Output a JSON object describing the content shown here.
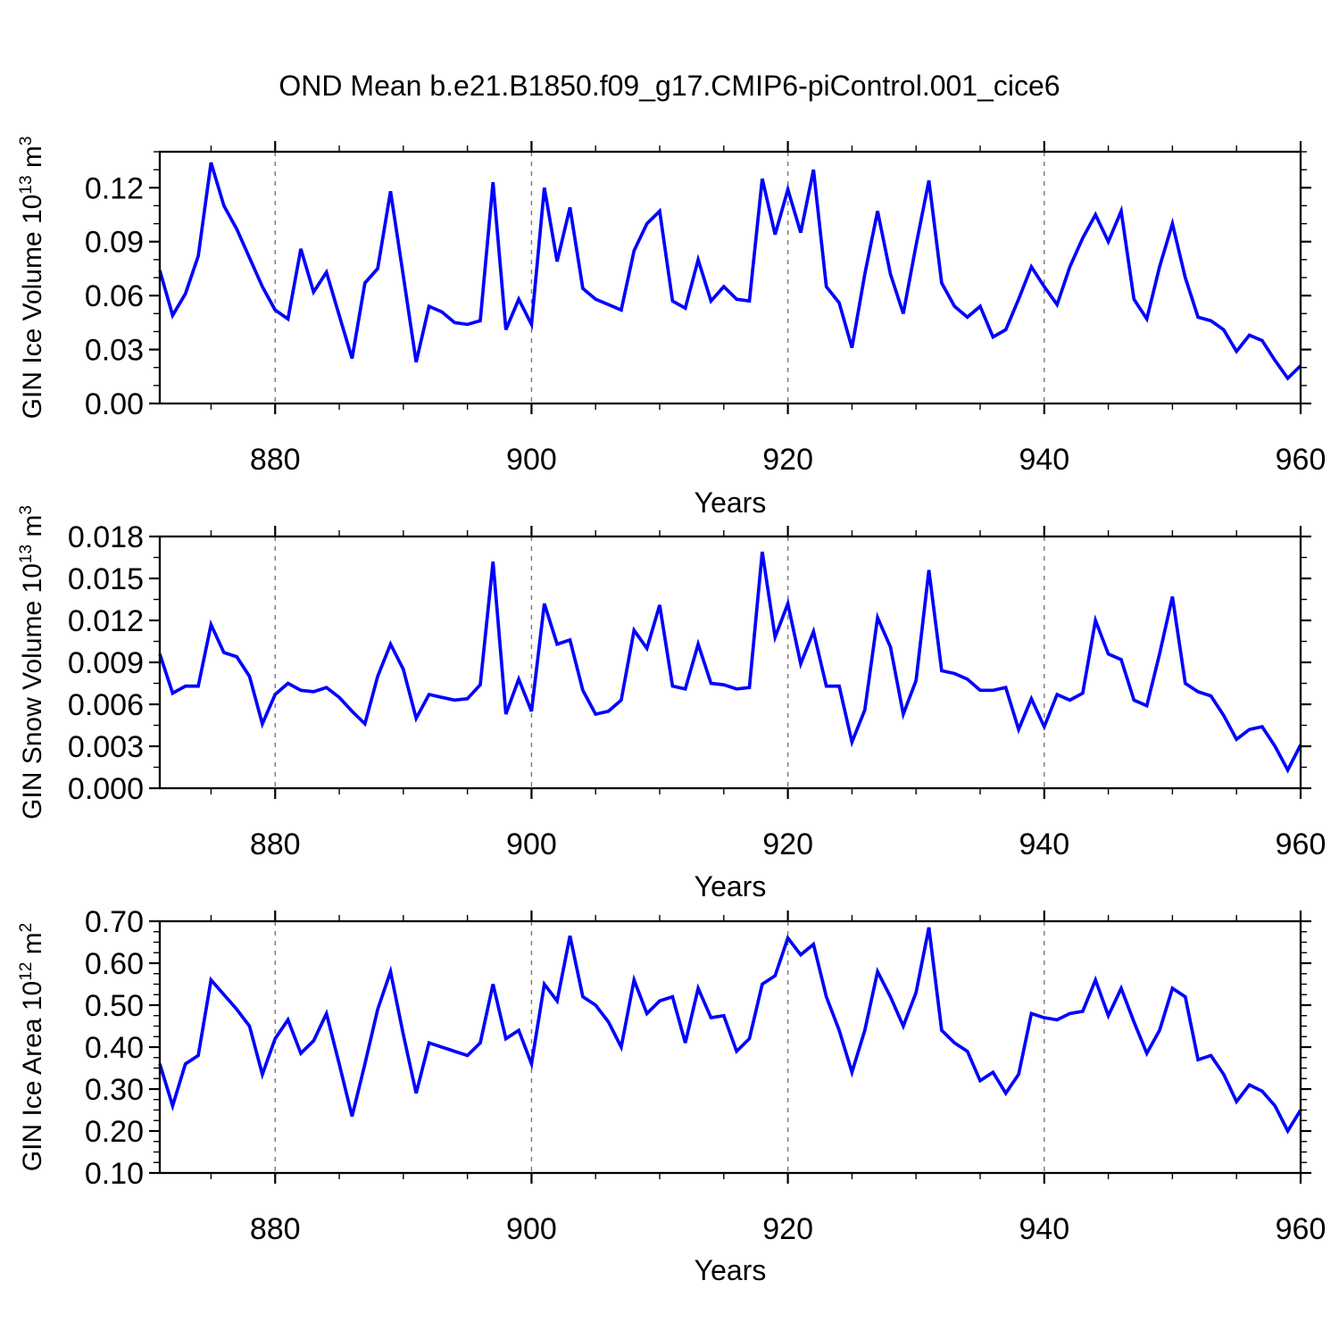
{
  "title": "OND Mean b.e21.B1850.f09_g17.CMIP6-piControl.001_cice6",
  "colors": {
    "line": "#0000ff",
    "axis": "#000000",
    "grid": "#777777",
    "background": "#ffffff"
  },
  "years": [
    871,
    872,
    873,
    874,
    875,
    876,
    877,
    878,
    879,
    880,
    881,
    882,
    883,
    884,
    885,
    886,
    887,
    888,
    889,
    890,
    891,
    892,
    893,
    894,
    895,
    896,
    897,
    898,
    899,
    900,
    901,
    902,
    903,
    904,
    905,
    906,
    907,
    908,
    909,
    910,
    911,
    912,
    913,
    914,
    915,
    916,
    917,
    918,
    919,
    920,
    921,
    922,
    923,
    924,
    925,
    926,
    927,
    928,
    929,
    930,
    931,
    932,
    933,
    934,
    935,
    936,
    937,
    938,
    939,
    940,
    941,
    942,
    943,
    944,
    945,
    946,
    947,
    948,
    949,
    950,
    951,
    952,
    953,
    954,
    955,
    956,
    957,
    958,
    959,
    960
  ],
  "chart_data": [
    {
      "type": "line",
      "name": "gin-ice-volume",
      "xlabel": "Years",
      "ylabel_parts": [
        {
          "t": "GIN Ice Volume 10"
        },
        {
          "t": "13"
        },
        {
          "t": " m"
        },
        {
          "t": "3"
        }
      ],
      "xlim": [
        871,
        960
      ],
      "ylim": [
        0,
        0.14
      ],
      "xticks": [
        880,
        900,
        920,
        940,
        960
      ],
      "xtick_labels": [
        "880",
        "900",
        "920",
        "940",
        "960"
      ],
      "xminor_step": 5,
      "yticks": [
        0,
        0.03,
        0.06,
        0.09,
        0.12
      ],
      "ytick_labels": [
        "0.00",
        "0.03",
        "0.06",
        "0.09",
        "0.12"
      ],
      "yminor_step": 0.01,
      "grid_x": [
        880,
        900,
        920,
        940
      ],
      "grid": true,
      "legend": "none",
      "values": [
        0.074,
        0.049,
        0.061,
        0.082,
        0.134,
        0.11,
        0.097,
        0.081,
        0.065,
        0.052,
        0.047,
        0.086,
        0.062,
        0.073,
        0.049,
        0.025,
        0.067,
        0.075,
        0.118,
        0.071,
        0.023,
        0.054,
        0.051,
        0.045,
        0.044,
        0.046,
        0.123,
        0.041,
        0.058,
        0.044,
        0.12,
        0.079,
        0.109,
        0.064,
        0.058,
        0.055,
        0.052,
        0.085,
        0.1,
        0.107,
        0.057,
        0.053,
        0.08,
        0.057,
        0.065,
        0.058,
        0.057,
        0.125,
        0.094,
        0.119,
        0.095,
        0.13,
        0.065,
        0.056,
        0.031,
        0.072,
        0.107,
        0.072,
        0.05,
        0.088,
        0.124,
        0.067,
        0.054,
        0.048,
        0.054,
        0.037,
        0.041,
        0.058,
        0.076,
        0.065,
        0.055,
        0.076,
        0.092,
        0.105,
        0.09,
        0.107,
        0.058,
        0.047,
        0.076,
        0.1,
        0.07,
        0.048,
        0.046,
        0.041,
        0.029,
        0.038,
        0.035,
        0.024,
        0.014,
        0.021
      ]
    },
    {
      "type": "line",
      "name": "gin-snow-volume",
      "xlabel": "Years",
      "ylabel_parts": [
        {
          "t": "GIN Snow Volume 10"
        },
        {
          "t": "13"
        },
        {
          "t": " m"
        },
        {
          "t": "3"
        }
      ],
      "xlim": [
        871,
        960
      ],
      "ylim": [
        0,
        0.018
      ],
      "xticks": [
        880,
        900,
        920,
        940,
        960
      ],
      "xtick_labels": [
        "880",
        "900",
        "920",
        "940",
        "960"
      ],
      "xminor_step": 5,
      "yticks": [
        0,
        0.003,
        0.006,
        0.009,
        0.012,
        0.015,
        0.018
      ],
      "ytick_labels": [
        "0.000",
        "0.003",
        "0.006",
        "0.009",
        "0.012",
        "0.015",
        "0.018"
      ],
      "yminor_step": 0.0015,
      "grid_x": [
        880,
        900,
        920,
        940
      ],
      "grid": true,
      "legend": "none",
      "values": [
        0.0096,
        0.0068,
        0.0073,
        0.0073,
        0.0117,
        0.0097,
        0.0094,
        0.008,
        0.0046,
        0.0067,
        0.0075,
        0.007,
        0.0069,
        0.0072,
        0.0065,
        0.0055,
        0.0046,
        0.008,
        0.0103,
        0.0085,
        0.005,
        0.0067,
        0.0065,
        0.0063,
        0.0064,
        0.0074,
        0.0162,
        0.0053,
        0.0078,
        0.0055,
        0.0132,
        0.0103,
        0.0106,
        0.007,
        0.0053,
        0.0055,
        0.0063,
        0.0113,
        0.01,
        0.0131,
        0.0073,
        0.0071,
        0.0103,
        0.0075,
        0.0074,
        0.0071,
        0.0072,
        0.0169,
        0.0108,
        0.0132,
        0.0089,
        0.0112,
        0.0073,
        0.0073,
        0.0033,
        0.0056,
        0.0122,
        0.0101,
        0.0053,
        0.0077,
        0.0156,
        0.0084,
        0.0082,
        0.0078,
        0.007,
        0.007,
        0.0072,
        0.0042,
        0.0064,
        0.0044,
        0.0067,
        0.0063,
        0.0068,
        0.012,
        0.0096,
        0.0092,
        0.0063,
        0.0059,
        0.0096,
        0.0137,
        0.0075,
        0.0069,
        0.0066,
        0.0052,
        0.0035,
        0.0042,
        0.0044,
        0.003,
        0.0013,
        0.0031
      ]
    },
    {
      "type": "line",
      "name": "gin-ice-area",
      "xlabel": "Years",
      "ylabel_parts": [
        {
          "t": "GIN Ice Area 10"
        },
        {
          "t": "12"
        },
        {
          "t": " m"
        },
        {
          "t": "2"
        }
      ],
      "xlim": [
        871,
        960
      ],
      "ylim": [
        0.1,
        0.7
      ],
      "xticks": [
        880,
        900,
        920,
        940,
        960
      ],
      "xtick_labels": [
        "880",
        "900",
        "920",
        "940",
        "960"
      ],
      "xminor_step": 5,
      "yticks": [
        0.1,
        0.2,
        0.3,
        0.4,
        0.5,
        0.6,
        0.7
      ],
      "ytick_labels": [
        "0.10",
        "0.20",
        "0.30",
        "0.40",
        "0.50",
        "0.60",
        "0.70"
      ],
      "yminor_step": 0.025,
      "grid_x": [
        880,
        900,
        920,
        940
      ],
      "grid": true,
      "legend": "none",
      "values": [
        0.36,
        0.26,
        0.36,
        0.38,
        0.56,
        0.525,
        0.49,
        0.45,
        0.335,
        0.42,
        0.465,
        0.385,
        0.415,
        0.48,
        0.36,
        0.235,
        0.36,
        0.49,
        0.58,
        0.43,
        0.29,
        0.41,
        0.4,
        0.39,
        0.38,
        0.41,
        0.55,
        0.42,
        0.44,
        0.36,
        0.55,
        0.51,
        0.665,
        0.52,
        0.5,
        0.46,
        0.4,
        0.56,
        0.48,
        0.51,
        0.52,
        0.41,
        0.54,
        0.47,
        0.475,
        0.39,
        0.42,
        0.55,
        0.57,
        0.66,
        0.62,
        0.645,
        0.52,
        0.44,
        0.34,
        0.44,
        0.58,
        0.52,
        0.45,
        0.53,
        0.685,
        0.44,
        0.41,
        0.39,
        0.32,
        0.34,
        0.29,
        0.335,
        0.48,
        0.47,
        0.465,
        0.48,
        0.485,
        0.56,
        0.475,
        0.54,
        0.46,
        0.385,
        0.44,
        0.54,
        0.52,
        0.37,
        0.38,
        0.335,
        0.27,
        0.31,
        0.295,
        0.26,
        0.2,
        0.25
      ]
    }
  ]
}
